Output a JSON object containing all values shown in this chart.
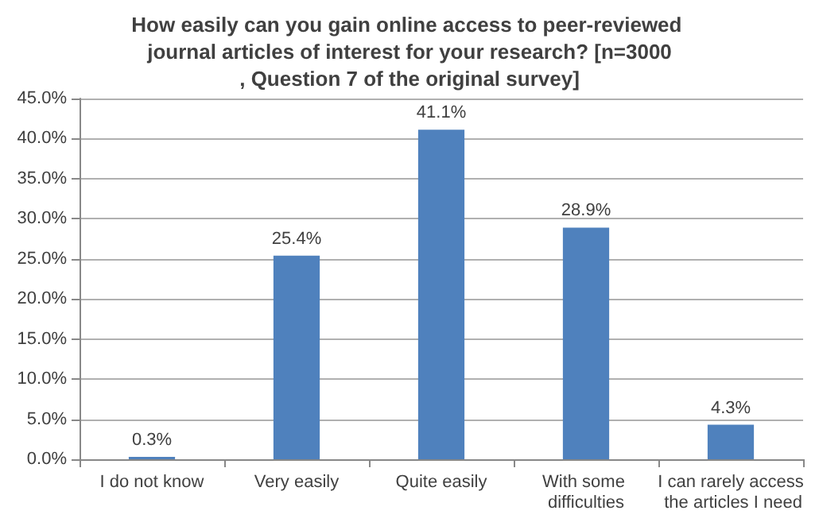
{
  "chart_data": {
    "type": "bar",
    "title": "How easily can you gain online access to peer-reviewed journal articles of interest for your research? [n=3000, Question 7 of the original survey]",
    "categories": [
      "I do not know",
      "Very easily",
      "Quite easily",
      "With some difficulties",
      "I can rarely access the articles I need"
    ],
    "values": [
      0.3,
      25.4,
      41.1,
      28.9,
      4.3
    ],
    "value_labels": [
      "0.3%",
      "25.4%",
      "41.1%",
      "28.9%",
      "4.3%"
    ],
    "color": "#4f81bd",
    "ylim": [
      0,
      45
    ],
    "yticks": [
      {
        "value": 0,
        "label": "0.0%"
      },
      {
        "value": 5,
        "label": "5.0%"
      },
      {
        "value": 10,
        "label": "10.0%"
      },
      {
        "value": 15,
        "label": "15.0%"
      },
      {
        "value": 20,
        "label": "20.0%"
      },
      {
        "value": 25,
        "label": "25.0%"
      },
      {
        "value": 30,
        "label": "30.0%"
      },
      {
        "value": 35,
        "label": "35.0%"
      },
      {
        "value": 40,
        "label": "40.0%"
      },
      {
        "value": 45,
        "label": "45.0%"
      }
    ],
    "grid": "y"
  }
}
